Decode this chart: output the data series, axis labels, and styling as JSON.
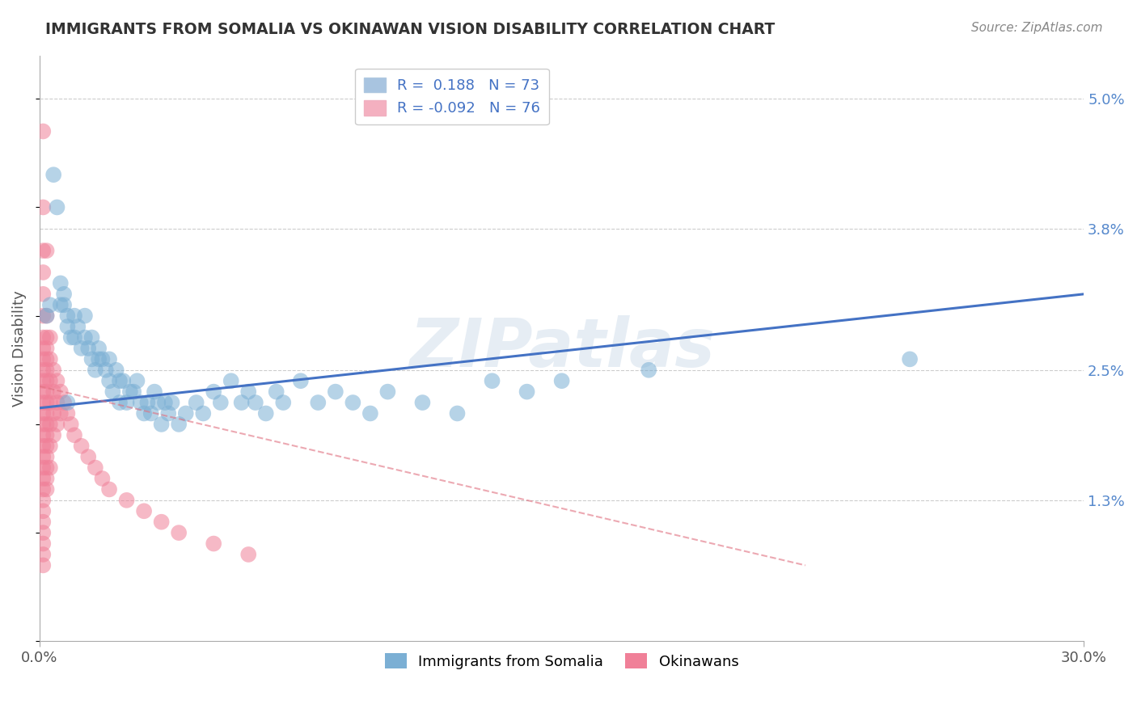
{
  "title": "IMMIGRANTS FROM SOMALIA VS OKINAWAN VISION DISABILITY CORRELATION CHART",
  "source_text": "Source: ZipAtlas.com",
  "ylabel": "Vision Disability",
  "y_ticks": [
    0.013,
    0.025,
    0.038,
    0.05
  ],
  "y_tick_labels": [
    "1.3%",
    "2.5%",
    "3.8%",
    "5.0%"
  ],
  "blue_color": "#7bafd4",
  "pink_color": "#f08098",
  "blue_line_color": "#4472c4",
  "pink_line_color": "#e07080",
  "watermark": "ZIPatlas",
  "blue_scatter": [
    [
      0.002,
      0.03
    ],
    [
      0.003,
      0.031
    ],
    [
      0.004,
      0.043
    ],
    [
      0.005,
      0.04
    ],
    [
      0.006,
      0.033
    ],
    [
      0.006,
      0.031
    ],
    [
      0.007,
      0.031
    ],
    [
      0.007,
      0.032
    ],
    [
      0.008,
      0.03
    ],
    [
      0.008,
      0.029
    ],
    [
      0.009,
      0.028
    ],
    [
      0.01,
      0.03
    ],
    [
      0.01,
      0.028
    ],
    [
      0.011,
      0.029
    ],
    [
      0.012,
      0.027
    ],
    [
      0.013,
      0.03
    ],
    [
      0.013,
      0.028
    ],
    [
      0.014,
      0.027
    ],
    [
      0.015,
      0.028
    ],
    [
      0.015,
      0.026
    ],
    [
      0.016,
      0.025
    ],
    [
      0.017,
      0.027
    ],
    [
      0.017,
      0.026
    ],
    [
      0.018,
      0.026
    ],
    [
      0.019,
      0.025
    ],
    [
      0.02,
      0.026
    ],
    [
      0.02,
      0.024
    ],
    [
      0.021,
      0.023
    ],
    [
      0.022,
      0.025
    ],
    [
      0.023,
      0.024
    ],
    [
      0.023,
      0.022
    ],
    [
      0.024,
      0.024
    ],
    [
      0.025,
      0.022
    ],
    [
      0.026,
      0.023
    ],
    [
      0.027,
      0.023
    ],
    [
      0.028,
      0.024
    ],
    [
      0.029,
      0.022
    ],
    [
      0.03,
      0.021
    ],
    [
      0.031,
      0.022
    ],
    [
      0.032,
      0.021
    ],
    [
      0.033,
      0.023
    ],
    [
      0.034,
      0.022
    ],
    [
      0.035,
      0.02
    ],
    [
      0.036,
      0.022
    ],
    [
      0.037,
      0.021
    ],
    [
      0.038,
      0.022
    ],
    [
      0.04,
      0.02
    ],
    [
      0.042,
      0.021
    ],
    [
      0.045,
      0.022
    ],
    [
      0.047,
      0.021
    ],
    [
      0.05,
      0.023
    ],
    [
      0.052,
      0.022
    ],
    [
      0.055,
      0.024
    ],
    [
      0.058,
      0.022
    ],
    [
      0.06,
      0.023
    ],
    [
      0.062,
      0.022
    ],
    [
      0.065,
      0.021
    ],
    [
      0.068,
      0.023
    ],
    [
      0.07,
      0.022
    ],
    [
      0.075,
      0.024
    ],
    [
      0.08,
      0.022
    ],
    [
      0.085,
      0.023
    ],
    [
      0.09,
      0.022
    ],
    [
      0.095,
      0.021
    ],
    [
      0.1,
      0.023
    ],
    [
      0.11,
      0.022
    ],
    [
      0.12,
      0.021
    ],
    [
      0.13,
      0.024
    ],
    [
      0.14,
      0.023
    ],
    [
      0.15,
      0.024
    ],
    [
      0.175,
      0.025
    ],
    [
      0.25,
      0.026
    ],
    [
      0.008,
      0.022
    ]
  ],
  "pink_scatter": [
    [
      0.001,
      0.047
    ],
    [
      0.001,
      0.04
    ],
    [
      0.001,
      0.036
    ],
    [
      0.001,
      0.034
    ],
    [
      0.001,
      0.032
    ],
    [
      0.001,
      0.03
    ],
    [
      0.001,
      0.028
    ],
    [
      0.001,
      0.027
    ],
    [
      0.001,
      0.026
    ],
    [
      0.001,
      0.025
    ],
    [
      0.001,
      0.024
    ],
    [
      0.001,
      0.023
    ],
    [
      0.001,
      0.022
    ],
    [
      0.001,
      0.021
    ],
    [
      0.001,
      0.02
    ],
    [
      0.001,
      0.019
    ],
    [
      0.001,
      0.018
    ],
    [
      0.001,
      0.017
    ],
    [
      0.001,
      0.016
    ],
    [
      0.001,
      0.015
    ],
    [
      0.001,
      0.014
    ],
    [
      0.001,
      0.013
    ],
    [
      0.001,
      0.012
    ],
    [
      0.001,
      0.011
    ],
    [
      0.001,
      0.01
    ],
    [
      0.001,
      0.009
    ],
    [
      0.001,
      0.008
    ],
    [
      0.002,
      0.036
    ],
    [
      0.002,
      0.03
    ],
    [
      0.002,
      0.028
    ],
    [
      0.002,
      0.027
    ],
    [
      0.002,
      0.026
    ],
    [
      0.002,
      0.025
    ],
    [
      0.002,
      0.024
    ],
    [
      0.002,
      0.023
    ],
    [
      0.002,
      0.022
    ],
    [
      0.002,
      0.021
    ],
    [
      0.002,
      0.02
    ],
    [
      0.002,
      0.019
    ],
    [
      0.002,
      0.018
    ],
    [
      0.002,
      0.017
    ],
    [
      0.002,
      0.016
    ],
    [
      0.002,
      0.015
    ],
    [
      0.002,
      0.014
    ],
    [
      0.003,
      0.028
    ],
    [
      0.003,
      0.026
    ],
    [
      0.003,
      0.024
    ],
    [
      0.003,
      0.022
    ],
    [
      0.003,
      0.02
    ],
    [
      0.003,
      0.018
    ],
    [
      0.003,
      0.016
    ],
    [
      0.004,
      0.025
    ],
    [
      0.004,
      0.023
    ],
    [
      0.004,
      0.021
    ],
    [
      0.004,
      0.019
    ],
    [
      0.005,
      0.024
    ],
    [
      0.005,
      0.022
    ],
    [
      0.005,
      0.02
    ],
    [
      0.006,
      0.023
    ],
    [
      0.006,
      0.021
    ],
    [
      0.007,
      0.022
    ],
    [
      0.008,
      0.021
    ],
    [
      0.009,
      0.02
    ],
    [
      0.01,
      0.019
    ],
    [
      0.012,
      0.018
    ],
    [
      0.014,
      0.017
    ],
    [
      0.016,
      0.016
    ],
    [
      0.018,
      0.015
    ],
    [
      0.02,
      0.014
    ],
    [
      0.025,
      0.013
    ],
    [
      0.03,
      0.012
    ],
    [
      0.035,
      0.011
    ],
    [
      0.04,
      0.01
    ],
    [
      0.05,
      0.009
    ],
    [
      0.06,
      0.008
    ],
    [
      0.001,
      0.007
    ]
  ],
  "blue_line_x": [
    0.0,
    0.3
  ],
  "blue_line_y": [
    0.0215,
    0.032
  ],
  "pink_line_x": [
    0.0,
    0.22
  ],
  "pink_line_y": [
    0.0235,
    0.007
  ],
  "xlim": [
    0.0,
    0.3
  ],
  "ylim": [
    0.0,
    0.054
  ],
  "background_color": "#ffffff",
  "grid_color": "#cccccc"
}
